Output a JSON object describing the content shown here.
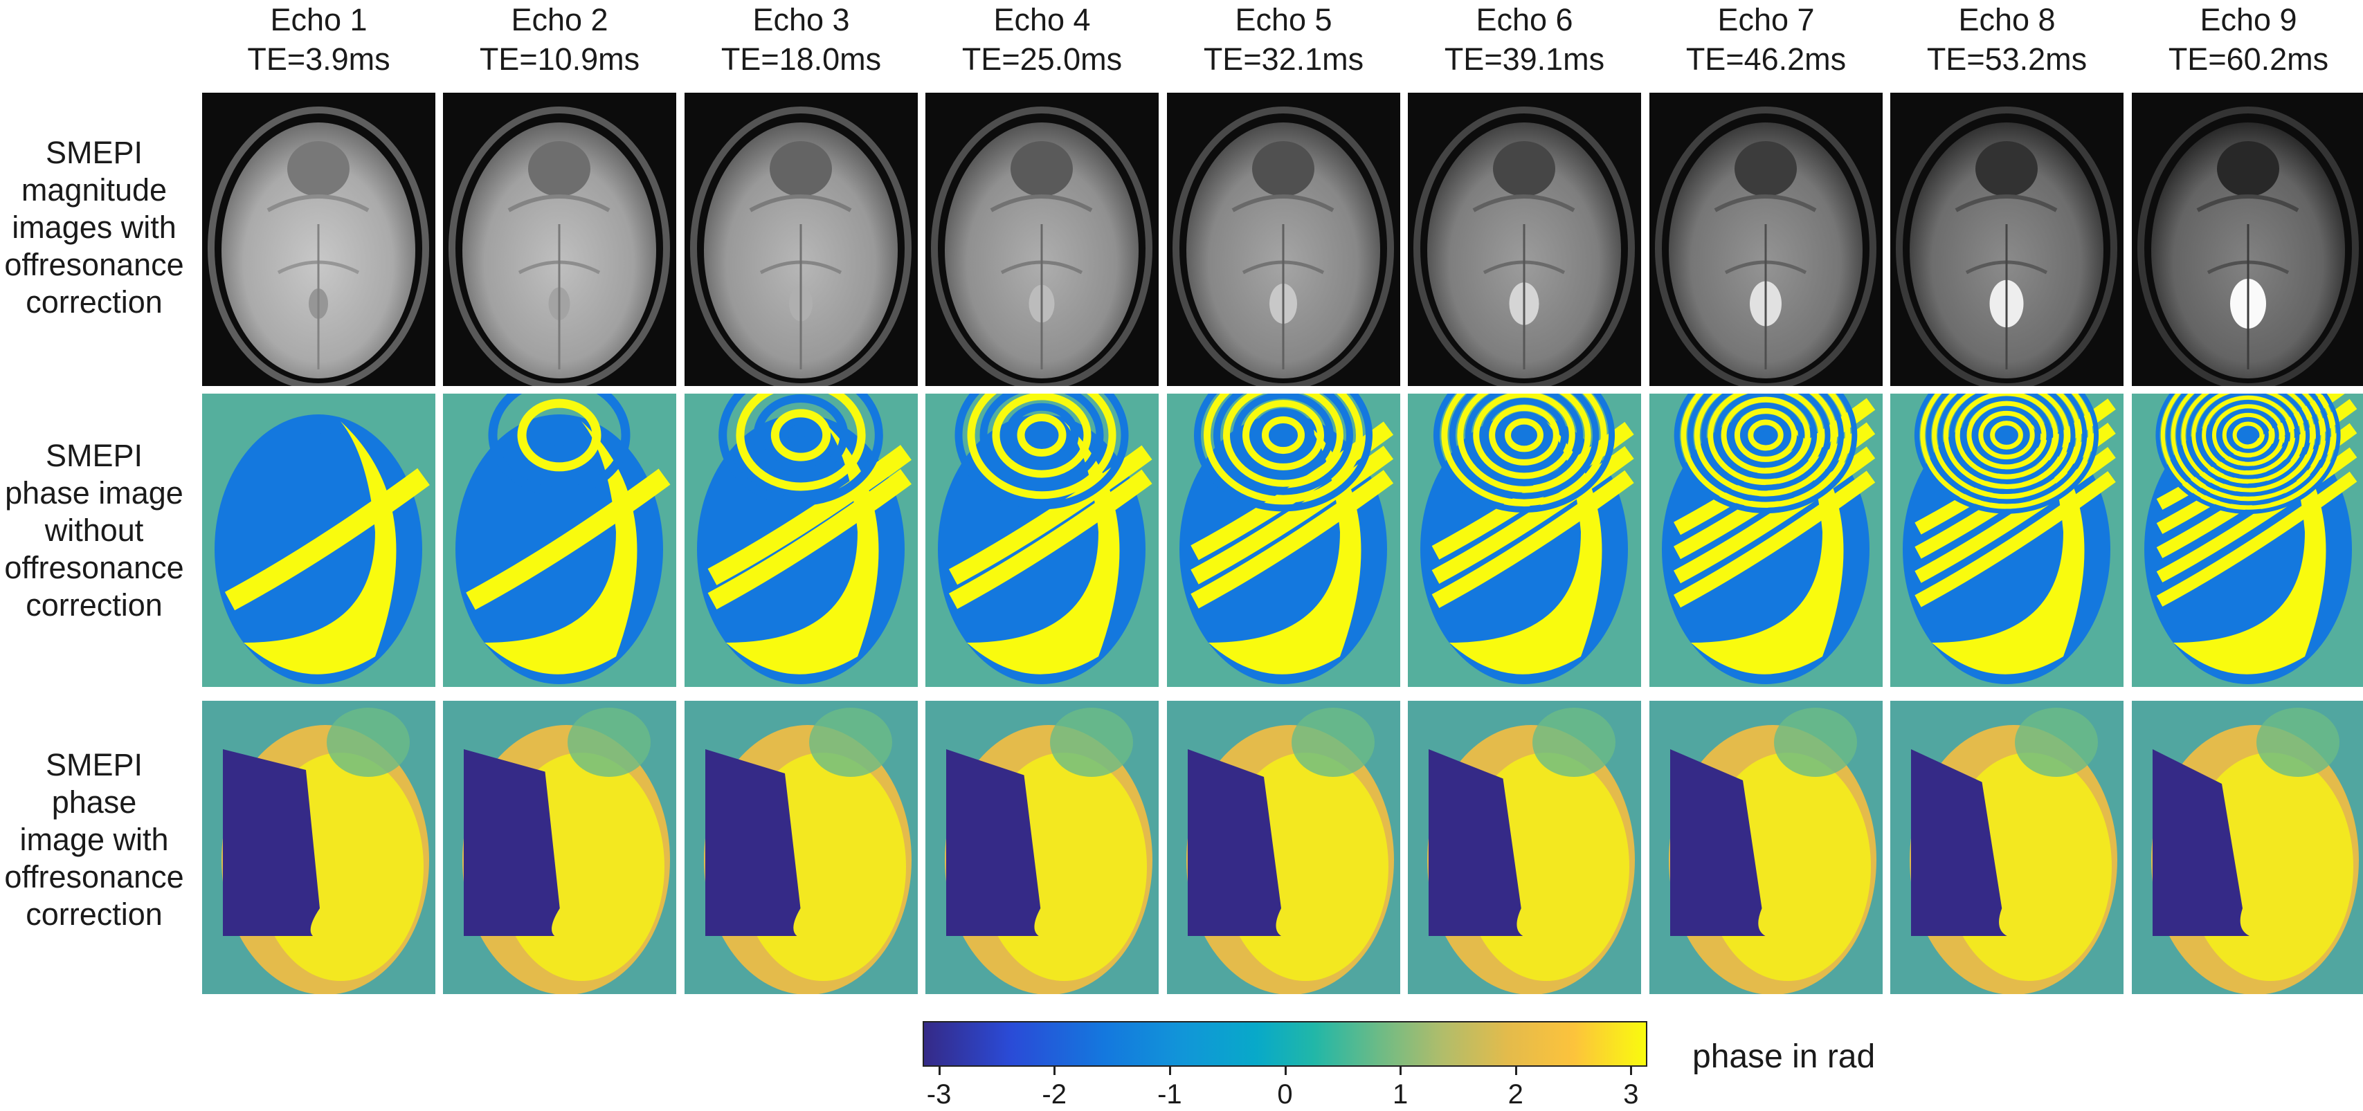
{
  "columns": [
    {
      "echo": "Echo 1",
      "te": "TE=3.9ms"
    },
    {
      "echo": "Echo 2",
      "te": "TE=10.9ms"
    },
    {
      "echo": "Echo 3",
      "te": "TE=18.0ms"
    },
    {
      "echo": "Echo 4",
      "te": "TE=25.0ms"
    },
    {
      "echo": "Echo 5",
      "te": "TE=32.1ms"
    },
    {
      "echo": "Echo 6",
      "te": "TE=39.1ms"
    },
    {
      "echo": "Echo 7",
      "te": "TE=46.2ms"
    },
    {
      "echo": "Echo 8",
      "te": "TE=53.2ms"
    },
    {
      "echo": "Echo 9",
      "te": "TE=60.2ms"
    }
  ],
  "rows": [
    {
      "lines": [
        "SMEPI",
        "magnitude",
        "images with",
        "offresonance",
        "correction"
      ],
      "kind": "magnitude"
    },
    {
      "lines": [
        "SMEPI",
        "phase image",
        "without",
        "offresonance",
        "correction"
      ],
      "kind": "phase-uncorrected"
    },
    {
      "lines": [
        "SMEPI",
        "phase",
        "image with",
        "offresonance",
        "correction"
      ],
      "kind": "phase-corrected"
    }
  ],
  "colorbar": {
    "title": "phase in rad",
    "ticks": [
      "-3",
      "-2",
      "-1",
      "0",
      "1",
      "2",
      "3"
    ],
    "colors": [
      "#352a87",
      "#1478de",
      "#08a9c9",
      "#6cbb86",
      "#e4bb4b",
      "#f9fb0e"
    ]
  }
}
